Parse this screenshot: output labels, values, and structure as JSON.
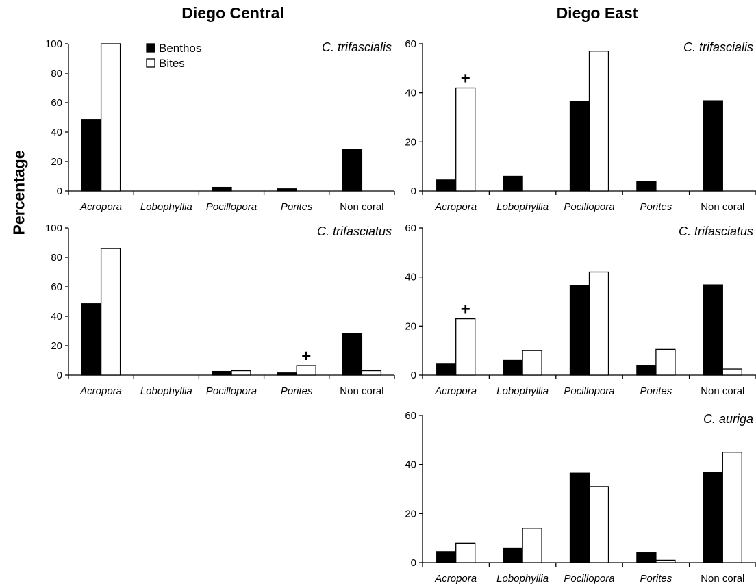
{
  "figure": {
    "ylabel": "Percentage",
    "columns": [
      "Diego Central",
      "Diego East"
    ]
  },
  "chart_data": [
    {
      "type": "bar",
      "region": "Diego Central",
      "title": "C. trifascialis",
      "categories": [
        "Acropora",
        "Lobophyllia",
        "Pocillopora",
        "Porites",
        "Non coral"
      ],
      "series": [
        {
          "name": "Benthos",
          "values": [
            48.5,
            0,
            2.5,
            1.5,
            28.5
          ]
        },
        {
          "name": "Bites",
          "values": [
            100,
            0,
            0,
            0,
            0
          ]
        }
      ],
      "ylim": [
        0,
        100
      ],
      "yticks": [
        0,
        20,
        40,
        60,
        80,
        100
      ],
      "legend": "top-left",
      "annotations": []
    },
    {
      "type": "bar",
      "region": "Diego Central",
      "title": "C. trifasciatus",
      "categories": [
        "Acropora",
        "Lobophyllia",
        "Pocillopora",
        "Porites",
        "Non coral"
      ],
      "series": [
        {
          "name": "Benthos",
          "values": [
            48.5,
            0,
            2.5,
            1.5,
            28.5
          ]
        },
        {
          "name": "Bites",
          "values": [
            86,
            0,
            3,
            6.5,
            3
          ]
        }
      ],
      "ylim": [
        0,
        100
      ],
      "yticks": [
        0,
        20,
        40,
        60,
        80,
        100
      ],
      "annotations": [
        {
          "text": "+",
          "category": "Porites",
          "series": "Bites"
        }
      ]
    },
    {
      "type": "bar",
      "region": "Diego East",
      "title": "C. trifascialis",
      "categories": [
        "Acropora",
        "Lobophyllia",
        "Pocillopora",
        "Porites",
        "Non coral"
      ],
      "series": [
        {
          "name": "Benthos",
          "values": [
            4.5,
            6,
            36.5,
            4,
            36.8
          ]
        },
        {
          "name": "Bites",
          "values": [
            42,
            0,
            57,
            0,
            0
          ]
        }
      ],
      "ylim": [
        0,
        60
      ],
      "yticks": [
        0,
        20,
        40,
        60
      ],
      "annotations": [
        {
          "text": "+",
          "category": "Acropora",
          "series": "Bites"
        }
      ]
    },
    {
      "type": "bar",
      "region": "Diego East",
      "title": "C. trifasciatus",
      "categories": [
        "Acropora",
        "Lobophyllia",
        "Pocillopora",
        "Porites",
        "Non coral"
      ],
      "series": [
        {
          "name": "Benthos",
          "values": [
            4.5,
            6,
            36.5,
            4,
            36.8
          ]
        },
        {
          "name": "Bites",
          "values": [
            23,
            10,
            42,
            10.5,
            2.5
          ]
        }
      ],
      "ylim": [
        0,
        60
      ],
      "yticks": [
        0,
        20,
        40,
        60
      ],
      "annotations": [
        {
          "text": "+",
          "category": "Acropora",
          "series": "Bites"
        }
      ]
    },
    {
      "type": "bar",
      "region": "Diego East",
      "title": "C. auriga",
      "categories": [
        "Acropora",
        "Lobophyllia",
        "Pocillopora",
        "Porites",
        "Non coral"
      ],
      "series": [
        {
          "name": "Benthos",
          "values": [
            4.5,
            6,
            36.5,
            4,
            36.8
          ]
        },
        {
          "name": "Bites",
          "values": [
            8,
            14,
            31,
            1,
            45
          ]
        }
      ],
      "ylim": [
        0,
        60
      ],
      "yticks": [
        0,
        20,
        40,
        60
      ],
      "annotations": []
    }
  ],
  "colors": {
    "benthos": "#000000",
    "bites": "#ffffff",
    "axis": "#000000"
  }
}
